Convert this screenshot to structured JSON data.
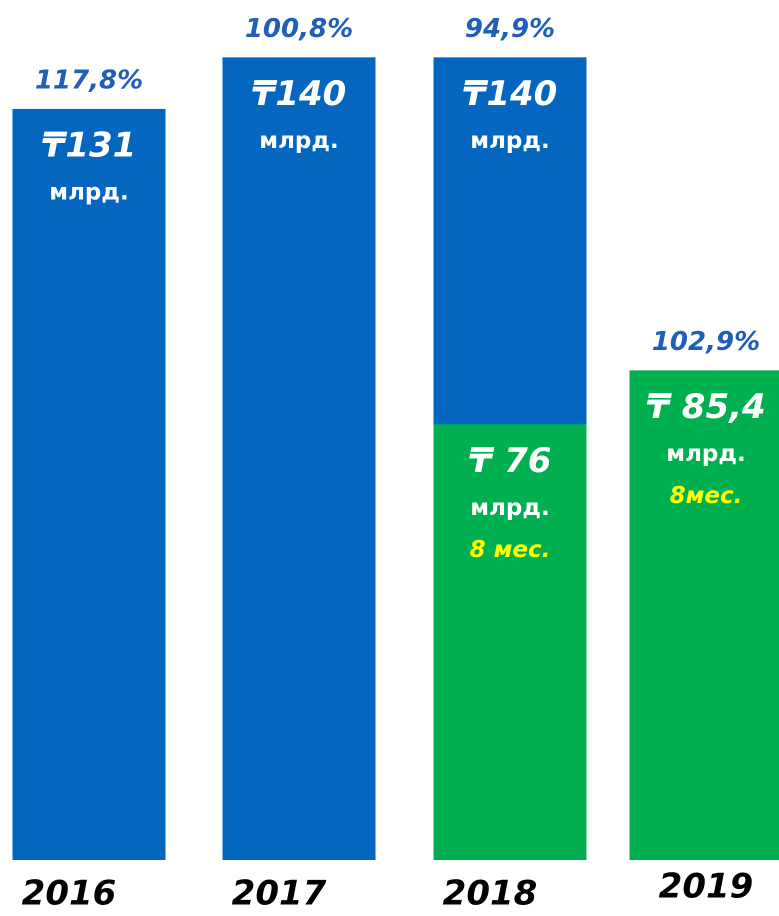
{
  "chart_data": {
    "type": "bar",
    "categories": [
      "2016",
      "2017",
      "2018",
      "2019"
    ],
    "ylim": [
      0,
      150
    ],
    "growth_labels": [
      "117,8%",
      "100,8%",
      "94,9%",
      "102,9%"
    ],
    "series": [
      {
        "color": "#0566c0",
        "values": [
          131,
          140,
          140,
          null
        ],
        "value_labels": [
          "₸131",
          "₸140",
          "₸140",
          null
        ],
        "unit_labels": [
          "млрд.",
          "млрд.",
          "млрд.",
          null
        ],
        "period_labels": [
          null,
          null,
          null,
          null
        ]
      },
      {
        "color": "#00b050",
        "values": [
          null,
          null,
          76,
          85.4
        ],
        "value_labels": [
          null,
          null,
          "₸ 76",
          "₸ 85,4"
        ],
        "unit_labels": [
          null,
          null,
          "млрд.",
          "млрд."
        ],
        "period_labels": [
          null,
          null,
          "8 мес.",
          "8мес."
        ]
      }
    ]
  }
}
